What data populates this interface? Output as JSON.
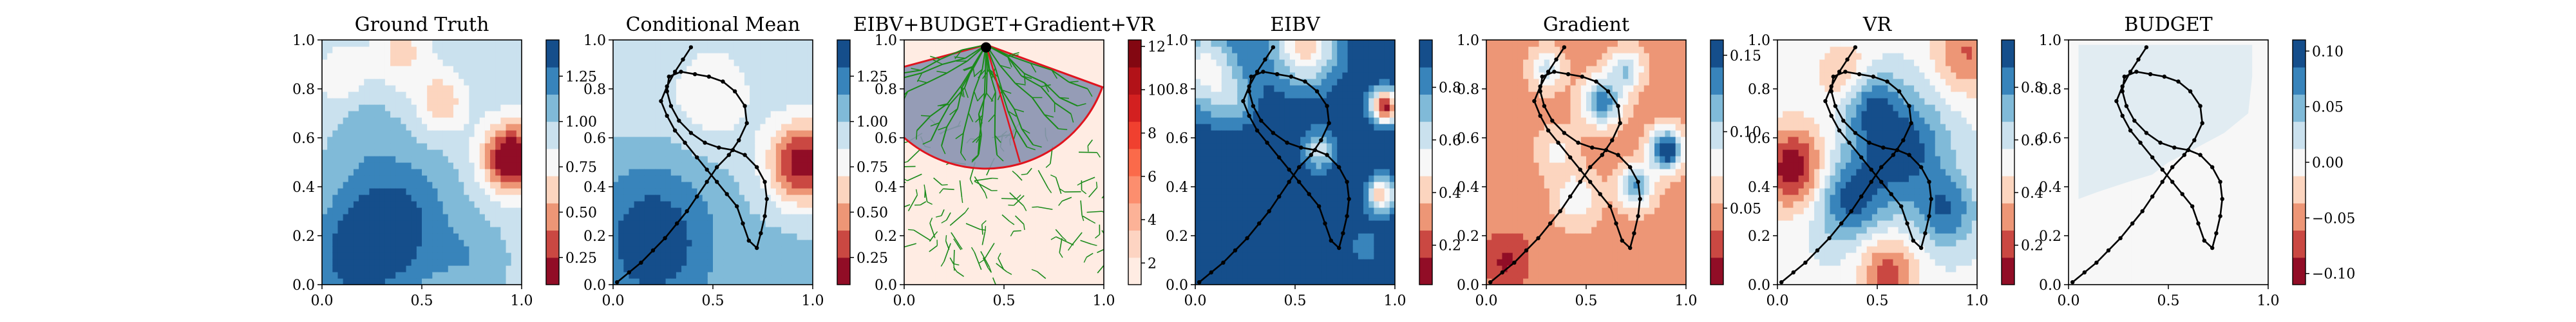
{
  "palettes": {
    "rdbu": [
      "#67001f",
      "#b2182b",
      "#d6604d",
      "#f4a582",
      "#fddbc7",
      "#f7f7f7",
      "#d1e5f0",
      "#92c5de",
      "#4393c3",
      "#2166ac",
      "#053061"
    ],
    "reds": [
      "#fff5f0",
      "#fee0d2",
      "#fcbba1",
      "#fc9272",
      "#fb6a4a",
      "#ef3b2c",
      "#cb181d",
      "#a50f15",
      "#67000d"
    ],
    "path_color": "#000000",
    "tree_color": "#1a8a1a",
    "sector_fill": "#8a93b0",
    "sector_edge": "#e0141e",
    "budget_fill": "#e1ecf2"
  },
  "chart_data": [
    {
      "type": "heatmap",
      "title": "Ground Truth",
      "xlim": [
        0,
        1
      ],
      "ylim": [
        0,
        1
      ],
      "xticks": [
        "0.0",
        "0.5",
        "1.0"
      ],
      "yticks": [
        "0.0",
        "0.2",
        "0.4",
        "0.6",
        "0.8",
        "1.0"
      ],
      "colorbar": {
        "ticks": [
          "0.25",
          "0.50",
          "0.75",
          "1.00",
          "1.25"
        ],
        "range": [
          0.1,
          1.45
        ],
        "palette": "rdbu"
      },
      "field": {
        "base": 0.95,
        "bumps": [
          {
            "x": 0.95,
            "y": 0.52,
            "amp": -0.95,
            "sigma": 0.1
          },
          {
            "x": 0.6,
            "y": 0.75,
            "amp": -0.35,
            "sigma": 0.09
          },
          {
            "x": 0.4,
            "y": 0.95,
            "amp": -0.3,
            "sigma": 0.1
          },
          {
            "x": 0.1,
            "y": 0.85,
            "amp": -0.2,
            "sigma": 0.1
          },
          {
            "x": 0.35,
            "y": 0.25,
            "amp": 0.45,
            "sigma": 0.2
          },
          {
            "x": 0.15,
            "y": 0.1,
            "amp": 0.3,
            "sigma": 0.15
          },
          {
            "x": 0.75,
            "y": 0.1,
            "amp": 0.15,
            "sigma": 0.12
          },
          {
            "x": 0.2,
            "y": 0.65,
            "amp": 0.12,
            "sigma": 0.1
          }
        ]
      }
    },
    {
      "type": "heatmap",
      "title": "Conditional Mean",
      "xlim": [
        0,
        1
      ],
      "ylim": [
        0,
        1
      ],
      "xticks": [
        "0.0",
        "0.5",
        "1.0"
      ],
      "yticks": [
        "0.0",
        "0.2",
        "0.4",
        "0.6",
        "0.8",
        "1.0"
      ],
      "colorbar": {
        "ticks": [
          "0.25",
          "0.50",
          "0.75",
          "1.00",
          "1.25"
        ],
        "range": [
          0.1,
          1.45
        ],
        "palette": "rdbu"
      },
      "field": {
        "base": 0.98,
        "bumps": [
          {
            "x": 0.95,
            "y": 0.5,
            "amp": -0.85,
            "sigma": 0.12
          },
          {
            "x": 0.5,
            "y": 0.78,
            "amp": -0.25,
            "sigma": 0.15
          },
          {
            "x": 0.1,
            "y": 0.75,
            "amp": -0.1,
            "sigma": 0.12
          },
          {
            "x": 0.2,
            "y": 0.18,
            "amp": 0.45,
            "sigma": 0.22
          },
          {
            "x": 0.85,
            "y": 0.05,
            "amp": 0.1,
            "sigma": 0.15
          }
        ]
      },
      "path": "main"
    },
    {
      "type": "heatmap",
      "title": "EIBV+BUDGET+Gradient+VR",
      "xlim": [
        0,
        1
      ],
      "ylim": [
        0,
        1
      ],
      "xticks": [
        "0.0",
        "0.5",
        "1.0"
      ],
      "yticks": [
        "0.0",
        "0.2",
        "0.4",
        "0.6",
        "0.8",
        "1.0"
      ],
      "colorbar": {
        "ticks": [
          "2",
          "4",
          "6",
          "8",
          "10",
          "12"
        ],
        "range": [
          1,
          12.3
        ],
        "palette": "reds"
      },
      "field": {
        "base": 1.1,
        "bumps": []
      },
      "tree": {
        "root": [
          0.41,
          0.98
        ],
        "sector_radius": 0.62,
        "sector_from_deg": 195,
        "sector_to_deg": 340
      }
    },
    {
      "type": "heatmap",
      "title": "EIBV",
      "xlim": [
        0,
        1
      ],
      "ylim": [
        0,
        1
      ],
      "xticks": [
        "0.0",
        "0.5",
        "1.0"
      ],
      "yticks": [
        "0.0",
        "0.2",
        "0.4",
        "0.6",
        "0.8",
        "1.0"
      ],
      "colorbar": {
        "ticks": [
          "0.2",
          "0.4",
          "0.6",
          "0.8"
        ],
        "range": [
          0.05,
          0.98
        ],
        "palette": "rdbu"
      },
      "field": {
        "base": 0.97,
        "bumps": [
          {
            "x": 0.95,
            "y": 0.73,
            "amp": -0.85,
            "sigma": 0.05
          },
          {
            "x": 0.93,
            "y": 0.37,
            "amp": -0.6,
            "sigma": 0.05
          },
          {
            "x": 0.55,
            "y": 0.98,
            "amp": -0.55,
            "sigma": 0.12
          },
          {
            "x": 0.05,
            "y": 0.88,
            "amp": -0.45,
            "sigma": 0.12
          },
          {
            "x": 0.62,
            "y": 0.55,
            "amp": -0.35,
            "sigma": 0.06
          },
          {
            "x": 0.2,
            "y": 0.75,
            "amp": -0.2,
            "sigma": 0.08
          },
          {
            "x": 0.85,
            "y": 0.15,
            "amp": -0.12,
            "sigma": 0.08
          }
        ]
      },
      "path": "main"
    },
    {
      "type": "heatmap",
      "title": "Gradient",
      "xlim": [
        0,
        1
      ],
      "ylim": [
        0,
        1
      ],
      "xticks": [
        "0.0",
        "0.5",
        "1.0"
      ],
      "yticks": [
        "0.0",
        "0.2",
        "0.4",
        "0.6",
        "0.8",
        "1.0"
      ],
      "colorbar": {
        "ticks": [
          "0.05",
          "0.10",
          "0.15"
        ],
        "range": [
          0.0,
          0.16
        ],
        "palette": "rdbu"
      },
      "field": {
        "base": 0.045,
        "bumps": [
          {
            "x": 0.9,
            "y": 0.55,
            "amp": 0.12,
            "sigma": 0.06
          },
          {
            "x": 0.75,
            "y": 0.4,
            "amp": 0.08,
            "sigma": 0.06
          },
          {
            "x": 0.58,
            "y": 0.75,
            "amp": 0.09,
            "sigma": 0.07
          },
          {
            "x": 0.7,
            "y": 0.88,
            "amp": 0.06,
            "sigma": 0.06
          },
          {
            "x": 0.3,
            "y": 0.88,
            "amp": 0.05,
            "sigma": 0.06
          },
          {
            "x": 0.45,
            "y": 0.35,
            "amp": 0.04,
            "sigma": 0.08
          },
          {
            "x": 0.1,
            "y": 0.1,
            "amp": -0.03,
            "sigma": 0.08
          },
          {
            "x": 0.35,
            "y": 0.55,
            "amp": 0.03,
            "sigma": 0.07
          }
        ]
      },
      "path": "main"
    },
    {
      "type": "heatmap",
      "title": "VR",
      "xlim": [
        0,
        1
      ],
      "ylim": [
        0,
        1
      ],
      "xticks": [
        "0.0",
        "0.5",
        "1.0"
      ],
      "yticks": [
        "0.0",
        "0.2",
        "0.4",
        "0.6",
        "0.8",
        "1.0"
      ],
      "colorbar": {
        "ticks": [
          "0.2",
          "0.4",
          "0.6",
          "0.8"
        ],
        "range": [
          0.05,
          0.98
        ],
        "palette": "rdbu"
      },
      "field": {
        "base": 0.55,
        "bumps": [
          {
            "x": 0.08,
            "y": 0.48,
            "amp": -0.48,
            "sigma": 0.12
          },
          {
            "x": 0.55,
            "y": 0.05,
            "amp": -0.35,
            "sigma": 0.1
          },
          {
            "x": 0.95,
            "y": 0.95,
            "amp": -0.3,
            "sigma": 0.12
          },
          {
            "x": 0.35,
            "y": 0.85,
            "amp": -0.25,
            "sigma": 0.1
          },
          {
            "x": 0.62,
            "y": 0.55,
            "amp": 0.4,
            "sigma": 0.16
          },
          {
            "x": 0.35,
            "y": 0.35,
            "amp": 0.35,
            "sigma": 0.12
          },
          {
            "x": 0.85,
            "y": 0.3,
            "amp": 0.3,
            "sigma": 0.1
          },
          {
            "x": 0.45,
            "y": 0.75,
            "amp": 0.3,
            "sigma": 0.1
          }
        ]
      },
      "path": "main"
    },
    {
      "type": "heatmap",
      "title": "BUDGET",
      "xlim": [
        0,
        1
      ],
      "ylim": [
        0,
        1
      ],
      "xticks": [
        "0.0",
        "0.5",
        "1.0"
      ],
      "yticks": [
        "0.0",
        "0.2",
        "0.4",
        "0.6",
        "0.8",
        "1.0"
      ],
      "colorbar": {
        "ticks": [
          "−0.10",
          "−0.05",
          "0.00",
          "0.05",
          "0.10"
        ],
        "range": [
          -0.11,
          0.11
        ],
        "palette": "rdbu"
      },
      "field": {
        "base": 0,
        "bumps": []
      },
      "budget_region": [
        [
          0.05,
          0.35
        ],
        [
          0.15,
          0.38
        ],
        [
          0.3,
          0.42
        ],
        [
          0.42,
          0.45
        ],
        [
          0.5,
          0.5
        ],
        [
          0.62,
          0.55
        ],
        [
          0.78,
          0.62
        ],
        [
          0.9,
          0.7
        ],
        [
          0.92,
          0.85
        ],
        [
          0.92,
          0.98
        ],
        [
          0.05,
          0.98
        ]
      ],
      "path": "main"
    }
  ],
  "path_points": [
    [
      0.02,
      0.01
    ],
    [
      0.08,
      0.05
    ],
    [
      0.14,
      0.09
    ],
    [
      0.2,
      0.14
    ],
    [
      0.26,
      0.19
    ],
    [
      0.32,
      0.25
    ],
    [
      0.37,
      0.3
    ],
    [
      0.42,
      0.36
    ],
    [
      0.47,
      0.42
    ],
    [
      0.52,
      0.48
    ],
    [
      0.58,
      0.53
    ],
    [
      0.63,
      0.59
    ],
    [
      0.67,
      0.66
    ],
    [
      0.66,
      0.73
    ],
    [
      0.61,
      0.79
    ],
    [
      0.55,
      0.83
    ],
    [
      0.48,
      0.85
    ],
    [
      0.41,
      0.86
    ],
    [
      0.34,
      0.87
    ],
    [
      0.28,
      0.85
    ],
    [
      0.27,
      0.79
    ],
    [
      0.29,
      0.73
    ],
    [
      0.33,
      0.67
    ],
    [
      0.39,
      0.62
    ],
    [
      0.46,
      0.58
    ],
    [
      0.53,
      0.56
    ],
    [
      0.6,
      0.55
    ],
    [
      0.66,
      0.53
    ],
    [
      0.72,
      0.48
    ],
    [
      0.76,
      0.42
    ],
    [
      0.77,
      0.35
    ],
    [
      0.76,
      0.28
    ],
    [
      0.74,
      0.21
    ],
    [
      0.72,
      0.15
    ],
    [
      0.68,
      0.18
    ],
    [
      0.65,
      0.25
    ],
    [
      0.62,
      0.32
    ],
    [
      0.57,
      0.37
    ],
    [
      0.52,
      0.42
    ],
    [
      0.47,
      0.47
    ],
    [
      0.42,
      0.52
    ],
    [
      0.36,
      0.58
    ],
    [
      0.31,
      0.63
    ],
    [
      0.27,
      0.69
    ],
    [
      0.24,
      0.75
    ],
    [
      0.27,
      0.81
    ],
    [
      0.31,
      0.87
    ],
    [
      0.35,
      0.92
    ],
    [
      0.39,
      0.97
    ]
  ]
}
